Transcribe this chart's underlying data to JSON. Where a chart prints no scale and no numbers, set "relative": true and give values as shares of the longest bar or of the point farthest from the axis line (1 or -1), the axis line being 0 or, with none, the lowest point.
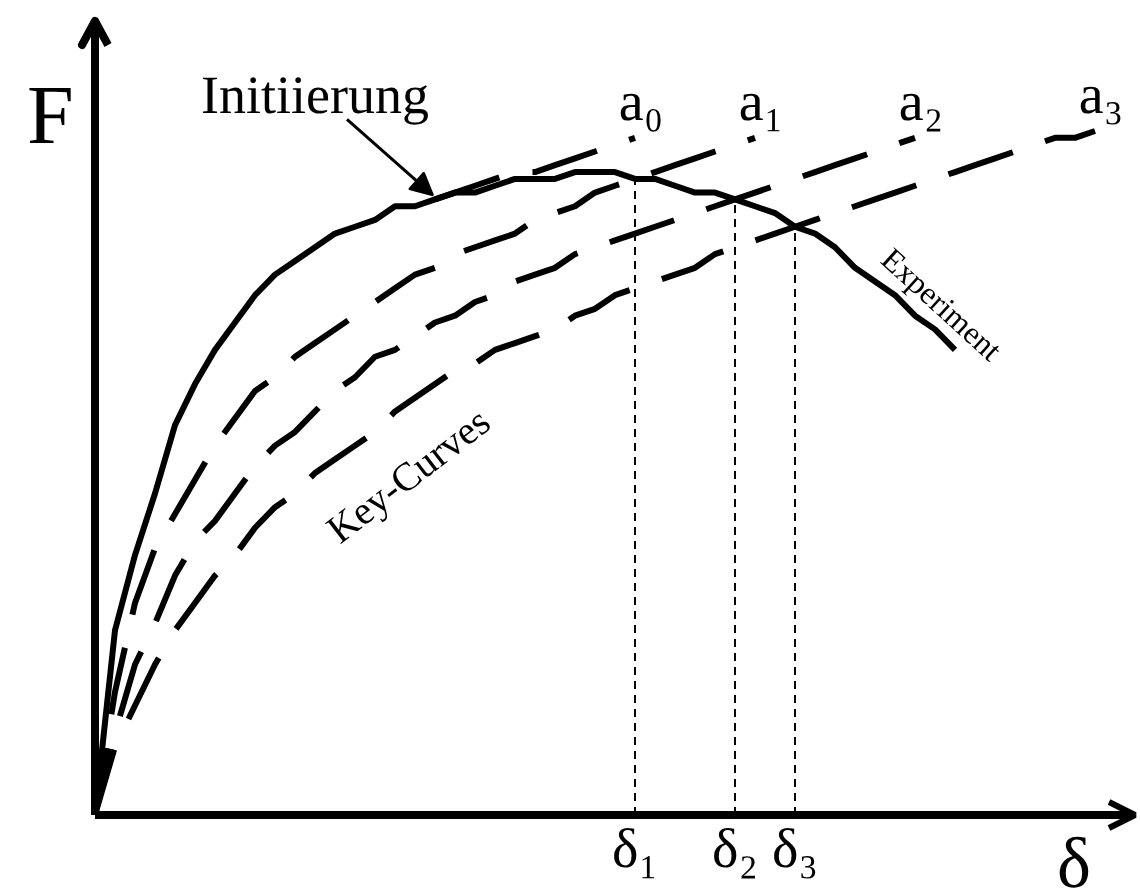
{
  "chart_data": {
    "type": "line",
    "relative": true,
    "xlabel": "δ",
    "ylabel": "F",
    "line_style": "dashed",
    "categories": [
      null,
      null,
      null,
      null,
      null,
      null,
      null,
      null,
      null,
      null,
      null,
      null,
      null,
      null,
      null,
      null,
      null,
      null,
      null,
      null,
      null,
      null,
      null,
      null,
      null,
      null,
      null,
      "δ₁",
      null,
      null,
      null,
      null,
      "δ₂",
      null,
      null,
      "δ₃",
      null,
      null,
      null,
      null,
      null,
      null,
      null,
      null,
      null,
      null,
      null,
      null,
      null,
      null,
      null
    ],
    "series": [
      {
        "name": "a₀",
        "color": "#000000",
        "values": [
          null,
          null,
          null,
          null,
          null,
          null,
          null,
          null,
          null,
          null,
          null,
          null,
          null,
          null,
          null,
          null,
          null,
          0.9,
          0.91,
          0.92,
          0.93,
          0.94,
          0.94,
          0.95,
          0.96,
          0.97,
          0.98,
          0.99,
          null,
          null,
          null,
          null,
          null,
          null,
          null,
          null,
          null,
          null,
          null,
          null,
          null,
          null,
          null,
          null,
          null,
          null,
          null,
          null,
          null,
          null,
          null
        ]
      },
      {
        "name": "a₁",
        "color": "#000000",
        "values": [
          0,
          0.18,
          0.31,
          0.39,
          0.44,
          0.49,
          0.54,
          0.58,
          0.62,
          0.64,
          0.67,
          0.69,
          0.71,
          0.73,
          0.75,
          0.77,
          0.79,
          0.8,
          0.82,
          0.83,
          0.84,
          0.85,
          0.87,
          0.88,
          0.89,
          0.91,
          0.92,
          0.93,
          0.94,
          0.95,
          0.96,
          0.97,
          0.98,
          0.99,
          null,
          null,
          null,
          null,
          null,
          null,
          null,
          null,
          null,
          null,
          null,
          null,
          null,
          null,
          null,
          null,
          null
        ]
      },
      {
        "name": "a₂",
        "color": "#000000",
        "values": [
          0,
          0.12,
          0.22,
          0.28,
          0.35,
          0.4,
          0.43,
          0.47,
          0.51,
          0.54,
          0.56,
          0.59,
          0.62,
          0.64,
          0.67,
          0.68,
          0.7,
          0.72,
          0.73,
          0.75,
          0.76,
          0.78,
          0.79,
          0.8,
          0.82,
          0.83,
          0.84,
          0.85,
          0.86,
          0.87,
          0.88,
          0.89,
          0.9,
          0.91,
          0.92,
          0.93,
          0.94,
          0.95,
          0.96,
          0.97,
          0.98,
          0.99,
          null,
          null,
          null,
          null,
          null,
          null,
          null,
          null,
          null
        ]
      },
      {
        "name": "a₃",
        "color": "#000000",
        "values": [
          0,
          0.1,
          0.16,
          0.22,
          0.27,
          0.31,
          0.35,
          0.38,
          0.42,
          0.45,
          0.47,
          0.5,
          0.52,
          0.54,
          0.56,
          0.59,
          0.61,
          0.63,
          0.65,
          0.66,
          0.68,
          0.69,
          0.7,
          0.71,
          0.73,
          0.74,
          0.76,
          0.77,
          0.78,
          0.79,
          0.8,
          0.82,
          0.83,
          0.84,
          0.85,
          0.86,
          0.87,
          0.88,
          0.89,
          0.9,
          0.91,
          0.92,
          0.93,
          0.94,
          0.95,
          0.96,
          0.97,
          0.98,
          0.99,
          0.99,
          1.0
        ]
      },
      {
        "name": "Experiment",
        "color": "#000000",
        "line_style": "solid",
        "values": [
          0,
          0.27,
          0.38,
          0.47,
          0.57,
          0.63,
          0.68,
          0.72,
          0.76,
          0.79,
          0.81,
          0.83,
          0.85,
          0.86,
          0.87,
          0.89,
          0.89,
          0.9,
          0.91,
          0.91,
          0.92,
          0.93,
          0.93,
          0.93,
          0.94,
          0.94,
          0.94,
          0.93,
          0.93,
          0.92,
          0.91,
          0.91,
          0.9,
          0.89,
          0.88,
          0.86,
          0.85,
          0.83,
          0.8,
          0.78,
          0.76,
          0.73,
          0.71,
          0.68,
          null,
          null,
          null,
          null,
          null,
          null,
          null
        ]
      }
    ],
    "ref_lines": [
      {
        "axis": "x",
        "value": "δ₁",
        "line_style": "dashed"
      },
      {
        "axis": "x",
        "value": "δ₂",
        "line_style": "dashed"
      },
      {
        "axis": "x",
        "value": "δ₃",
        "line_style": "dashed"
      }
    ],
    "annotations": [
      "Initiierung",
      "Key-Curves"
    ]
  }
}
